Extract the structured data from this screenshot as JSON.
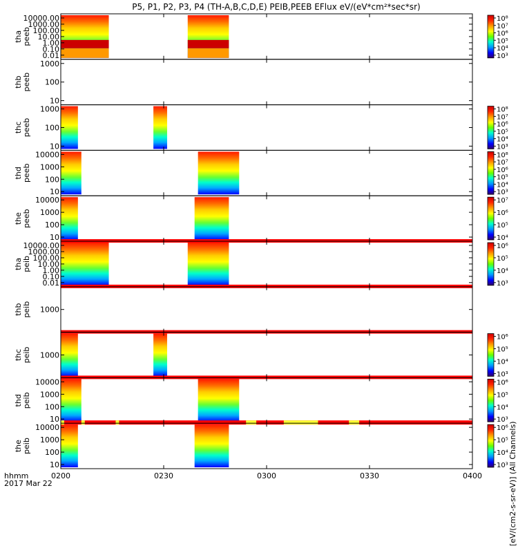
{
  "title": "P5, P1, P2, P3, P4 (TH-A,B,C,D,E) PEIB,PEEB EFlux eV/(eV*cm²*sec*sr)",
  "colorbar_unit_text": "[eV/(cm2-s-sr-eV)] (All Channels)",
  "chart_data": {
    "type": "heatmap",
    "subtype": "stacked energy-time spectrograms",
    "title": "P5, P1, P2, P3, P4 (TH-A,B,C,D,E) PEIB,PEEB EFlux eV/(eV*cm²*sec*sr)",
    "x_axis": {
      "ticks": [
        "0200",
        "0230",
        "0300",
        "0330",
        "0400"
      ],
      "caption": "hhmm",
      "date": "2017 Mar 22"
    },
    "panels": [
      {
        "ylabel": [
          "tha",
          "peeb"
        ],
        "y_ticks": [
          "10000.00",
          "1000.00",
          "100.00",
          "10.00",
          "1.00",
          "0.10",
          "0.01"
        ],
        "cb_ticks": [
          "10⁸",
          "10⁷",
          "10⁶",
          "10⁵",
          "10⁴",
          "10³"
        ],
        "data_intervals": [
          [
            "02:00",
            "02:14"
          ],
          [
            "02:37",
            "02:49"
          ]
        ],
        "low_band": true
      },
      {
        "ylabel": [
          "thb",
          "peeb"
        ],
        "y_ticks": [
          "1000",
          "100",
          "10"
        ],
        "cb_ticks": [],
        "data_intervals": []
      },
      {
        "ylabel": [
          "thc",
          "peeb"
        ],
        "y_ticks": [
          "1000",
          "100",
          "10"
        ],
        "cb_ticks": [
          "10⁸",
          "10⁷",
          "10⁶",
          "10⁵",
          "10⁴",
          "10³"
        ],
        "data_intervals": [
          [
            "02:00",
            "02:05"
          ],
          [
            "02:27",
            "02:31"
          ]
        ]
      },
      {
        "ylabel": [
          "thd",
          "peeb"
        ],
        "y_ticks": [
          "10000",
          "1000",
          "100",
          "10"
        ],
        "cb_ticks": [
          "10⁸",
          "10⁷",
          "10⁶",
          "10⁵",
          "10⁴",
          "10³"
        ],
        "data_intervals": [
          [
            "02:00",
            "02:06"
          ],
          [
            "02:40",
            "02:52"
          ]
        ]
      },
      {
        "ylabel": [
          "the",
          "peeb"
        ],
        "y_ticks": [
          "10000",
          "1000",
          "100",
          "10"
        ],
        "cb_ticks": [
          "10⁷",
          "10⁶",
          "10⁵",
          "10⁴"
        ],
        "data_intervals": [
          [
            "02:00",
            "02:05"
          ],
          [
            "02:39",
            "02:49"
          ]
        ]
      },
      {
        "ylabel": [
          "tha",
          "peib"
        ],
        "y_ticks": [
          "10000.00",
          "1000.00",
          "100.00",
          "10.00",
          "1.00",
          "0.10",
          "0.01"
        ],
        "cb_ticks": [
          "10⁶",
          "10⁵",
          "10⁴",
          "10³"
        ],
        "data_intervals": [
          [
            "02:00",
            "02:14"
          ],
          [
            "02:37",
            "02:49"
          ]
        ],
        "top_bar": true
      },
      {
        "ylabel": [
          "thb",
          "peib"
        ],
        "y_ticks": [
          "1000"
        ],
        "cb_ticks": [],
        "data_intervals": [],
        "top_bar": true,
        "bottom_bar": true
      },
      {
        "ylabel": [
          "thc",
          "peib"
        ],
        "y_ticks": [
          "1000"
        ],
        "cb_ticks": [
          "10⁶",
          "10⁵",
          "10⁴",
          "10³"
        ],
        "data_intervals": [
          [
            "02:00",
            "02:05"
          ],
          [
            "02:27",
            "02:31"
          ]
        ]
      },
      {
        "ylabel": [
          "thd",
          "peib"
        ],
        "y_ticks": [
          "10000",
          "1000",
          "100",
          "10"
        ],
        "cb_ticks": [
          "10⁶",
          "10⁵",
          "10⁴",
          "10³"
        ],
        "data_intervals": [
          [
            "02:00",
            "02:06"
          ],
          [
            "02:40",
            "02:52"
          ]
        ],
        "top_bar": true
      },
      {
        "ylabel": [
          "the",
          "peib"
        ],
        "y_ticks": [
          "10000",
          "1000",
          "100",
          "10"
        ],
        "cb_ticks": [
          "10⁶",
          "10⁵",
          "10⁴",
          "10³"
        ],
        "data_intervals": [
          [
            "02:00",
            "02:05"
          ],
          [
            "02:39",
            "02:49"
          ]
        ],
        "top_bar_yellow": [
          [
            "02:00",
            "02:01"
          ],
          [
            "02:06",
            "02:07"
          ],
          [
            "02:16",
            "02:17"
          ],
          [
            "02:54",
            "02:57"
          ],
          [
            "03:05",
            "03:15"
          ],
          [
            "03:24",
            "03:27"
          ]
        ]
      }
    ]
  }
}
